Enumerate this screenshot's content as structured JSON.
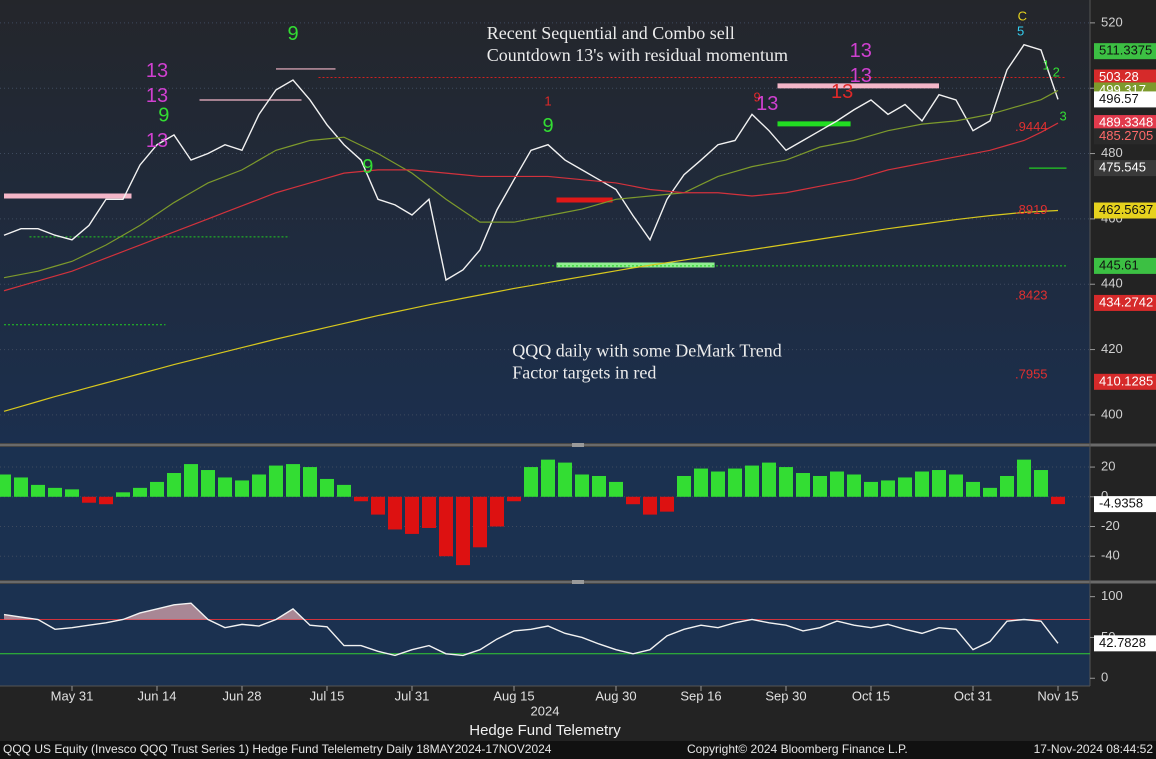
{
  "chart_data": [
    {
      "type": "line",
      "ylim": [
        391.4,
        527
      ],
      "yticks": [
        400,
        420,
        440,
        460,
        480,
        500,
        520
      ],
      "grid": true,
      "series": [
        {
          "color": "#f2f2f2",
          "values": [
            455,
            457,
            457,
            455,
            453.6,
            458,
            466,
            466,
            476.5,
            482.7,
            485.7,
            478,
            480,
            482.7,
            481,
            492,
            499.5,
            502.5,
            496.4,
            488.8,
            482.7,
            478,
            466,
            464.3,
            461.2,
            466,
            441.3,
            444.4,
            450.5,
            462.8,
            472,
            481,
            482.7,
            478,
            475,
            472,
            469,
            461,
            453.6,
            466,
            473.5,
            478,
            482.7,
            484,
            492,
            487,
            481,
            484,
            487,
            490,
            493.4,
            496.4,
            492,
            495,
            490,
            498,
            496.4,
            487,
            490,
            505.6,
            513.3,
            511.7,
            496.57
          ]
        },
        {
          "color": "#7d9a2c",
          "values": [
            442,
            443,
            444,
            445.5,
            447,
            449.5,
            452,
            455,
            458,
            461.5,
            465,
            468,
            471,
            473,
            475,
            478,
            481,
            482.5,
            484,
            484.5,
            485,
            482.5,
            480,
            477,
            474,
            470,
            466,
            462.5,
            459,
            459,
            459,
            460,
            461,
            462,
            463,
            464.5,
            466,
            466.5,
            467,
            467.5,
            468,
            470.5,
            473,
            474.5,
            476,
            477,
            478,
            480,
            482,
            483,
            484,
            485.5,
            487,
            488,
            489,
            489.5,
            490,
            491,
            492,
            493.5,
            495,
            496.5,
            499.317
          ]
        },
        {
          "color": "#d2323c",
          "values": [
            438,
            439.5,
            441,
            442.5,
            444,
            446,
            448,
            450,
            452,
            454,
            456,
            458,
            460,
            462,
            464,
            466,
            468,
            469.5,
            471,
            472.5,
            474,
            474.5,
            475,
            475,
            475,
            474.5,
            474,
            473.5,
            473,
            473,
            473,
            473,
            473,
            472.5,
            472,
            471.5,
            471,
            470,
            469,
            468.5,
            468,
            468,
            468,
            467.5,
            467,
            467.5,
            468,
            469,
            470,
            471,
            472,
            473.5,
            475,
            476,
            477,
            478,
            479,
            480,
            481,
            482.5,
            484,
            486.5,
            489.3348
          ]
        },
        {
          "color": "#d8c81e",
          "values": [
            401.1,
            402.6,
            404.1,
            405.6,
            407.0,
            408.4,
            409.8,
            411.2,
            412.6,
            414.0,
            415.4,
            416.7,
            418.0,
            419.3,
            420.6,
            421.9,
            423.2,
            424.4,
            425.6,
            426.8,
            428.0,
            429.2,
            430.4,
            431.5,
            432.6,
            433.7,
            434.7,
            435.7,
            436.7,
            437.7,
            438.7,
            439.6,
            440.5,
            441.4,
            442.3,
            443.2,
            444.1,
            445.0,
            445.8,
            446.6,
            447.4,
            448.2,
            449.0,
            449.8,
            450.6,
            451.4,
            452.2,
            453.0,
            453.8,
            454.6,
            455.4,
            456.2,
            457.0,
            457.7,
            458.4,
            459.1,
            459.8,
            460.4,
            461.0,
            461.5,
            462.0,
            462.3,
            462.5637
          ]
        }
      ],
      "value_labels": [
        {
          "value": 511.3375,
          "color": "#3cc043",
          "text_color": "#111111"
        },
        {
          "value": 503.28,
          "color": "#d62a2a",
          "text_color": "#ffffff"
        },
        {
          "value": 499.317,
          "color": "#7d9a2c",
          "text_color": "#ffffff"
        },
        {
          "value": 496.57,
          "color": "#ffffff",
          "text_color": "#111111"
        },
        {
          "value": 489.3348,
          "color": "#e23a4c",
          "text_color": "#ffffff"
        },
        {
          "value": 485.2705,
          "color": "#2a2a2a",
          "text_color": "#ff6a6a"
        },
        {
          "value": 475.545,
          "color": "#3a3a3a",
          "text_color": "#ffffff"
        },
        {
          "value": 462.5637,
          "color": "#e6d21e",
          "text_color": "#111111"
        },
        {
          "value": 445.61,
          "color": "#3cc043",
          "text_color": "#111111"
        },
        {
          "value": 434.2742,
          "color": "#d62a2a",
          "text_color": "#ffffff"
        },
        {
          "value": 410.1285,
          "color": "#d62a2a",
          "text_color": "#ffffff"
        }
      ],
      "trend_factor_labels": [
        {
          "text": ".9444",
          "y": 487.9
        },
        {
          "text": ".8919",
          "y": 462.5
        },
        {
          "text": ".8423",
          "y": 436.4
        },
        {
          "text": ".7955",
          "y": 412.2
        }
      ],
      "levels": [
        {
          "from": 0,
          "to": 7.5,
          "price": 467,
          "color": "#f4b6c8",
          "style": "bar"
        },
        {
          "from": 45.5,
          "to": 55,
          "price": 500.7,
          "color": "#f4b6c8",
          "style": "bar"
        },
        {
          "from": 32.5,
          "to": 35.8,
          "price": 465.8,
          "color": "#e01818",
          "style": "bar"
        },
        {
          "from": 32.5,
          "to": 41.8,
          "price": 445.9,
          "color": "#90ee90",
          "style": "bar"
        },
        {
          "from": 45.5,
          "to": 49.8,
          "price": 489.1,
          "color": "#22dd22",
          "style": "bar"
        },
        {
          "from": 18.5,
          "to": 62.5,
          "price": 503.28,
          "color": "#d02020",
          "style": "dotted"
        },
        {
          "from": 28,
          "to": 62.5,
          "price": 445.61,
          "color": "#22cc22",
          "style": "dotted"
        },
        {
          "from": 0,
          "to": 9.5,
          "price": 427.6,
          "color": "#22cc22",
          "style": "dotted"
        },
        {
          "from": 1.5,
          "to": 16.8,
          "price": 454.5,
          "color": "#22cc22",
          "style": "dotted"
        },
        {
          "from": 60.3,
          "to": 62.5,
          "price": 475.545,
          "color": "#22cc22",
          "style": "line"
        },
        {
          "from": 11.5,
          "to": 17.5,
          "price": 496.4,
          "color": "#f4b6c8",
          "style": "line"
        },
        {
          "from": 16,
          "to": 19.5,
          "price": 505.9,
          "color": "#f4b6c8",
          "style": "line"
        }
      ],
      "annotations": [
        {
          "text": "13",
          "x": 9,
          "y": 505,
          "color": "#d040d0",
          "large": true
        },
        {
          "text": "13",
          "x": 9,
          "y": 497.4,
          "color": "#d040d0",
          "large": true
        },
        {
          "text": "9",
          "x": 9.4,
          "y": 491.5,
          "color": "#33dd33",
          "large": true
        },
        {
          "text": "13",
          "x": 9,
          "y": 483.6,
          "color": "#d040d0",
          "large": true
        },
        {
          "text": "9",
          "x": 17,
          "y": 516.3,
          "color": "#33dd33",
          "large": true
        },
        {
          "text": "9",
          "x": 21.4,
          "y": 475.6,
          "color": "#33dd33",
          "large": true
        },
        {
          "text": "9",
          "x": 32,
          "y": 488.2,
          "color": "#33dd33",
          "large": true
        },
        {
          "text": "1",
          "x": 32,
          "y": 495.8,
          "color": "#e02828",
          "large": false
        },
        {
          "text": "9",
          "x": 44.3,
          "y": 497,
          "color": "#e02828",
          "large": false
        },
        {
          "text": "13",
          "x": 44.9,
          "y": 494.9,
          "color": "#d040d0",
          "large": true
        },
        {
          "text": "13",
          "x": 49.3,
          "y": 498.6,
          "color": "#e02828",
          "large": true
        },
        {
          "text": "13",
          "x": 50.4,
          "y": 511.1,
          "color": "#d040d0",
          "large": true
        },
        {
          "text": "13",
          "x": 50.4,
          "y": 503.5,
          "color": "#d040d0",
          "large": true
        },
        {
          "text": "C",
          "x": 59.9,
          "y": 521.8,
          "color": "#e6d21e",
          "large": false
        },
        {
          "text": "5",
          "x": 59.8,
          "y": 517.2,
          "color": "#33ccee",
          "large": false
        },
        {
          "text": "1",
          "x": 61.3,
          "y": 506.8,
          "color": "#33dd33",
          "large": false
        },
        {
          "text": "2",
          "x": 61.9,
          "y": 504.7,
          "color": "#33dd33",
          "large": false
        },
        {
          "text": "3",
          "x": 62.3,
          "y": 491.2,
          "color": "#33dd33",
          "large": false
        }
      ],
      "notes": [
        {
          "lines": [
            "Recent Sequential and Combo sell",
            "Countdown 13's with residual momentum"
          ],
          "x": 28.4,
          "y": 516.3
        },
        {
          "lines": [
            "QQQ daily with some DeMark Trend",
            "Factor targets in red"
          ],
          "x": 29.9,
          "y": 419.2
        }
      ]
    },
    {
      "type": "bar",
      "ylim": [
        -56,
        33.5
      ],
      "yticks": [
        -40,
        -20,
        0,
        20
      ],
      "grid": true,
      "colors": {
        "positive": "#33dd33",
        "negative": "#dd1111"
      },
      "values": [
        15,
        13,
        8,
        6,
        5,
        -4,
        -5,
        3,
        6,
        10,
        16,
        22,
        18,
        13,
        11,
        15,
        21,
        22,
        20,
        12,
        8,
        -3,
        -12,
        -22,
        -25,
        -21,
        -40,
        -46,
        -34,
        -20,
        -3,
        20,
        25,
        23,
        15,
        14,
        10,
        -5,
        -12,
        -10,
        14,
        19,
        17,
        19,
        21,
        23,
        20,
        16,
        14,
        17,
        15,
        10,
        11,
        13,
        17,
        18,
        15,
        10,
        6,
        14,
        25,
        18,
        -4.9358
      ],
      "value_labels": [
        {
          "value": -4.9358,
          "color": "#ffffff",
          "text_color": "#111111"
        }
      ]
    },
    {
      "type": "line",
      "ylim": [
        -9.5,
        115.5
      ],
      "yticks": [
        0,
        50,
        100
      ],
      "reference_lines": [
        {
          "value": 72,
          "color": "#d2323c"
        },
        {
          "value": 30,
          "color": "#33cc33"
        }
      ],
      "fill_color": "#d8a4ac",
      "series": [
        {
          "color": "#f2f2f2",
          "values": [
            78,
            75,
            72,
            60,
            62,
            65,
            68,
            72,
            80,
            85,
            90,
            92,
            72,
            62,
            66,
            64,
            72,
            85,
            65,
            63,
            40,
            40,
            33,
            28,
            35,
            40,
            30,
            28,
            35,
            48,
            58,
            60,
            64,
            55,
            50,
            42,
            35,
            30,
            35,
            52,
            60,
            65,
            62,
            68,
            72,
            68,
            65,
            58,
            62,
            70,
            65,
            62,
            66,
            60,
            55,
            62,
            60,
            35,
            45,
            70,
            72,
            70,
            42.7828
          ]
        }
      ],
      "value_labels": [
        {
          "value": 42.7828,
          "color": "#ffffff",
          "text_color": "#111111"
        }
      ],
      "categories": [
        null,
        null,
        null,
        null,
        "May 31",
        null,
        null,
        null,
        null,
        "Jun 14",
        null,
        null,
        null,
        null,
        "Jun 28",
        null,
        null,
        null,
        null,
        "Jul 15",
        null,
        null,
        null,
        null,
        "Jul 31",
        null,
        null,
        null,
        null,
        null,
        "Aug 15",
        null,
        null,
        null,
        null,
        null,
        "Aug 30",
        null,
        null,
        null,
        null,
        "Sep 16",
        null,
        null,
        null,
        null,
        "Sep 30",
        null,
        null,
        null,
        null,
        "Oct 15",
        null,
        null,
        null,
        null,
        null,
        "Oct 31",
        null,
        null,
        null,
        null,
        "Nov 15"
      ],
      "year_label": "2024",
      "xlabel": "Hedge Fund Telemetry"
    }
  ],
  "footer": {
    "left": "QQQ US Equity (Invesco QQQ Trust Series 1) Hedge Fund Telelemetry  Daily 18MAY2024-17NOV2024",
    "center": "Copyright© 2024 Bloomberg Finance L.P.",
    "right": "17-Nov-2024 08:44:52"
  }
}
